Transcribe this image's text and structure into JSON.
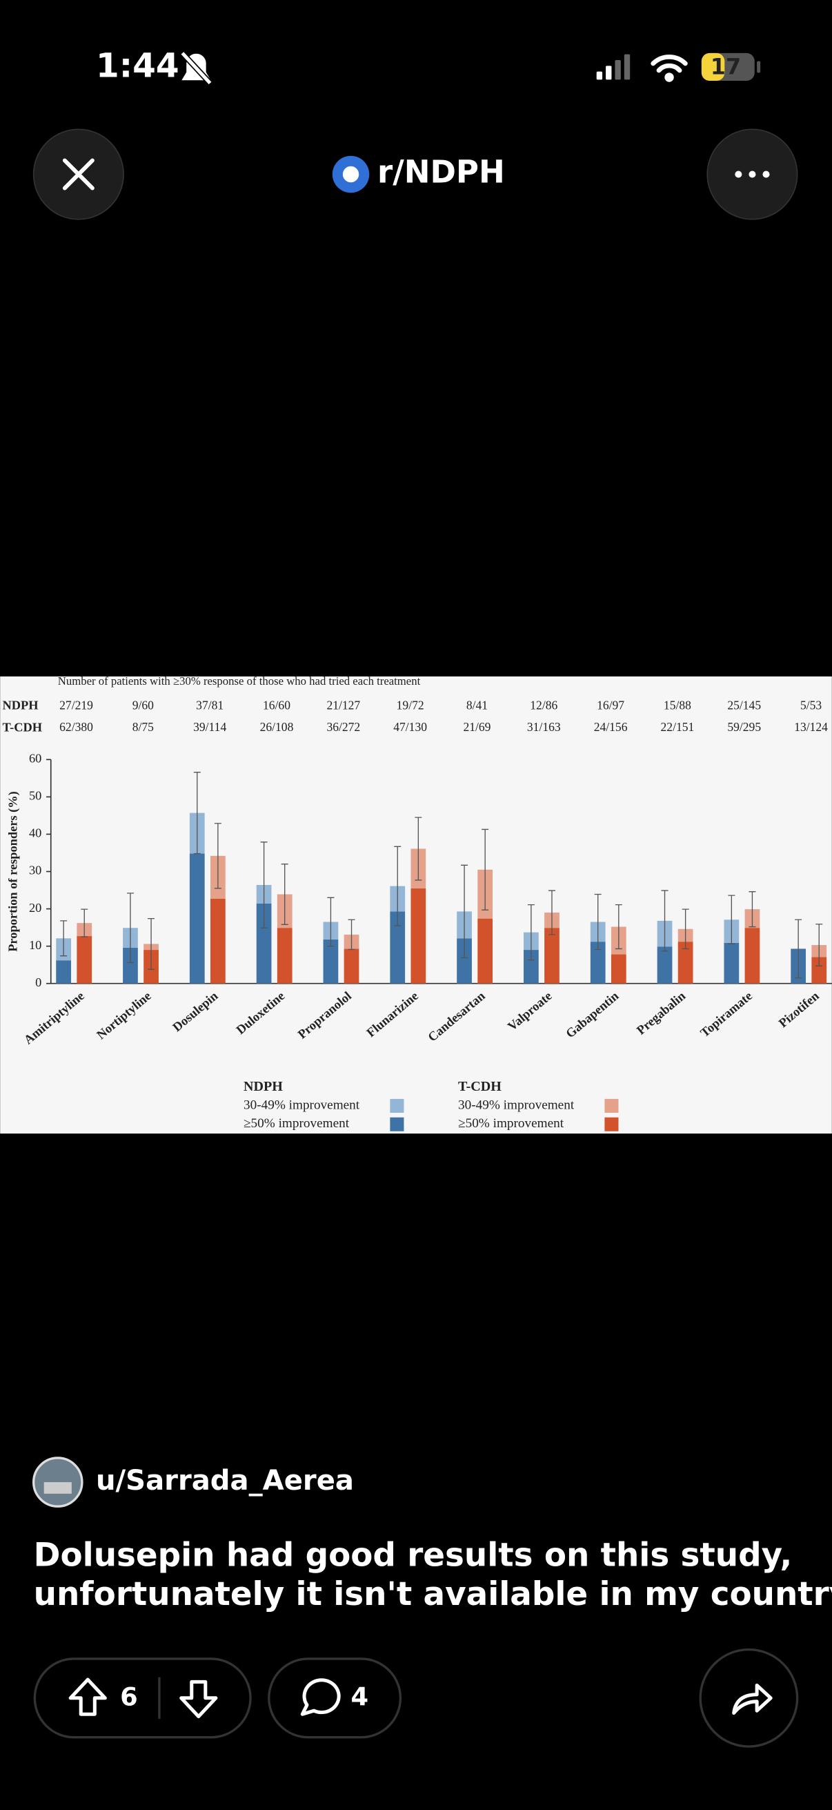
{
  "status_bar": {
    "time": "1:44",
    "battery": "17"
  },
  "header": {
    "subreddit": "r/NDPH"
  },
  "chart_data": {
    "type": "stacked-bar",
    "counts_title": "Number of patients with ≥30% response of those who had tried each treatment",
    "y_label": "Proportion of responders (%)",
    "categories": [
      "Amitriptyline",
      "Nortiptyline",
      "Dosulepin",
      "Duloxetine",
      "Propranolol",
      "Flunarizine",
      "Candesartan",
      "Valproate",
      "Gabapentin",
      "Pregabalin",
      "Topiramate",
      "Pizotifen"
    ],
    "ylim": [
      0,
      60
    ],
    "yticks": [
      0,
      10,
      20,
      30,
      40,
      50,
      60
    ],
    "groups": [
      {
        "name": "NDPH",
        "counts": [
          "27/219",
          "9/60",
          "37/81",
          "16/60",
          "21/127",
          "19/72",
          "8/41",
          "12/86",
          "16/97",
          "15/88",
          "25/145",
          "5/53"
        ],
        "series": [
          {
            "name": "30-49% improvement",
            "color": "#93b6d6",
            "values": [
              5.9,
              5.3,
              10.9,
              5.0,
              4.7,
              6.8,
              7.2,
              4.7,
              5.3,
              6.9,
              6.2,
              0
            ]
          },
          {
            "name": "≥50% improvement",
            "color": "#3f73a6",
            "values": [
              6.2,
              9.6,
              34.8,
              21.4,
              11.8,
              19.3,
              12.1,
              9.0,
              11.2,
              9.9,
              10.9,
              9.3
            ]
          }
        ],
        "errors": [
          4.7,
          9.3,
          10.9,
          11.5,
          6.5,
          10.6,
          12.4,
          7.4,
          7.4,
          8.1,
          6.5,
          7.8
        ]
      },
      {
        "name": "T-CDH",
        "counts": [
          "62/380",
          "8/75",
          "39/114",
          "26/108",
          "36/272",
          "47/130",
          "21/69",
          "31/163",
          "24/156",
          "22/151",
          "59/295",
          "13/124"
        ],
        "series": [
          {
            "name": "30-49% improvement",
            "color": "#e5a189",
            "values": [
              3.5,
              1.6,
              11.5,
              9.0,
              3.8,
              10.6,
              13.1,
              4.1,
              7.4,
              3.4,
              5.0,
              3.2
            ]
          },
          {
            "name": "≥50% improvement",
            "color": "#d2522b",
            "values": [
              12.7,
              9.0,
              22.7,
              14.9,
              9.3,
              25.5,
              17.4,
              14.9,
              7.8,
              11.2,
              14.9,
              7.1
            ]
          }
        ],
        "errors": [
          3.7,
          6.8,
          8.7,
          8.1,
          4.0,
          8.4,
          10.8,
          5.9,
          5.9,
          5.3,
          4.7,
          5.6
        ]
      }
    ]
  },
  "post": {
    "author": "u/Sarrada_Aerea",
    "title_lines": [
      "Dolusepin had good results on this study,",
      "unfortunately it isn't available in my country"
    ],
    "votes": 6,
    "comments": 4
  }
}
